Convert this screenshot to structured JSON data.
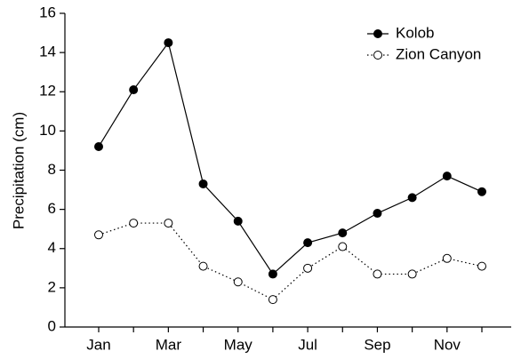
{
  "chart_data": {
    "type": "line",
    "ylabel": "Precipitation (cm)",
    "categories": [
      "Jan",
      null,
      "Mar",
      null,
      "May",
      null,
      "Jul",
      null,
      "Sep",
      null,
      "Nov",
      null
    ],
    "series": [
      {
        "name": "Kolob",
        "color": "#000000",
        "linestyle": "solid",
        "marker": "filled",
        "values": [
          9.2,
          12.1,
          14.5,
          7.3,
          5.4,
          2.7,
          4.3,
          4.8,
          5.8,
          6.6,
          7.7,
          6.9
        ]
      },
      {
        "name": "Zion Canyon",
        "color": "#000000",
        "linestyle": "dotted",
        "marker": "open",
        "values": [
          4.7,
          5.3,
          5.3,
          3.1,
          2.3,
          1.4,
          3.0,
          4.1,
          2.7,
          2.7,
          3.5,
          3.1
        ]
      }
    ],
    "ylim": [
      0,
      16
    ],
    "yticks": [
      0,
      2,
      4,
      6,
      8,
      10,
      12,
      14,
      16
    ],
    "grid": false,
    "legend": "upper right"
  }
}
